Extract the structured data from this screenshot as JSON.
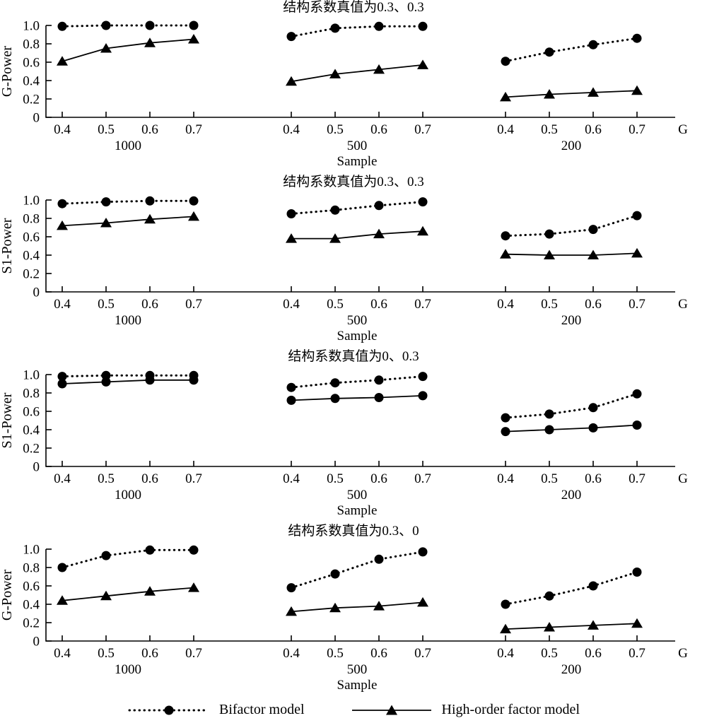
{
  "figure": {
    "background": "#ffffff",
    "ink": "#000000",
    "legend": [
      {
        "label": "Bifactor model",
        "marker": "circle",
        "line": "dotted"
      },
      {
        "label": "High-order factor model",
        "marker": "triangle",
        "line": "solid"
      }
    ]
  },
  "chart_data": [
    {
      "type": "line",
      "title": "结构系数真值为0.3、0.3",
      "ylabel": "G-Power",
      "xlabel": "Sample",
      "x_end_label": "G",
      "ylim": [
        0,
        1.0
      ],
      "yticks": [
        "0",
        "0.2",
        "0.4",
        "0.6",
        "0.8",
        "1.0"
      ],
      "x_tick_labels": [
        "0.4",
        "0.5",
        "0.6",
        "0.7"
      ],
      "group_labels": [
        "1000",
        "500",
        "200"
      ],
      "grid": false,
      "legend_position": "bottom",
      "series": [
        {
          "name": "Bifactor model",
          "line": "dotted",
          "marker": "circle",
          "values": [
            [
              0.99,
              1.0,
              1.0,
              1.0
            ],
            [
              0.88,
              0.97,
              0.99,
              0.99
            ],
            [
              0.61,
              0.71,
              0.79,
              0.86
            ]
          ]
        },
        {
          "name": "High-order factor model",
          "line": "solid",
          "marker": "triangle",
          "values": [
            [
              0.61,
              0.75,
              0.81,
              0.85
            ],
            [
              0.39,
              0.47,
              0.52,
              0.57
            ],
            [
              0.22,
              0.25,
              0.27,
              0.29
            ]
          ]
        }
      ]
    },
    {
      "type": "line",
      "title": "结构系数真值为0.3、0.3",
      "ylabel": "S1-Power",
      "xlabel": "Sample",
      "x_end_label": "G",
      "ylim": [
        0,
        1.0
      ],
      "yticks": [
        "0",
        "0.2",
        "0.4",
        "0.6",
        "0.8",
        "1.0"
      ],
      "x_tick_labels": [
        "0.4",
        "0.5",
        "0.6",
        "0.7"
      ],
      "group_labels": [
        "1000",
        "500",
        "200"
      ],
      "grid": false,
      "legend_position": "bottom",
      "series": [
        {
          "name": "Bifactor model",
          "line": "dotted",
          "marker": "circle",
          "values": [
            [
              0.96,
              0.98,
              0.99,
              0.99
            ],
            [
              0.85,
              0.89,
              0.94,
              0.98
            ],
            [
              0.61,
              0.63,
              0.68,
              0.83
            ]
          ]
        },
        {
          "name": "High-order factor model",
          "line": "solid",
          "marker": "triangle",
          "values": [
            [
              0.72,
              0.75,
              0.79,
              0.82
            ],
            [
              0.58,
              0.58,
              0.63,
              0.66
            ],
            [
              0.41,
              0.4,
              0.4,
              0.42
            ]
          ]
        }
      ]
    },
    {
      "type": "line",
      "title": "结构系数真值为0、0.3",
      "ylabel": "S1-Power",
      "xlabel": "Sample",
      "x_end_label": "G",
      "ylim": [
        0,
        1.0
      ],
      "yticks": [
        "0",
        "0.2",
        "0.4",
        "0.6",
        "0.8",
        "1.0"
      ],
      "x_tick_labels": [
        "0.4",
        "0.5",
        "0.6",
        "0.7"
      ],
      "group_labels": [
        "1000",
        "500",
        "200"
      ],
      "grid": false,
      "legend_position": "bottom",
      "series": [
        {
          "name": "Bifactor model",
          "line": "dotted",
          "marker": "circle",
          "values": [
            [
              0.98,
              0.99,
              0.99,
              0.99
            ],
            [
              0.86,
              0.91,
              0.94,
              0.98
            ],
            [
              0.53,
              0.57,
              0.64,
              0.79
            ]
          ]
        },
        {
          "name": "High-order factor model",
          "line": "solid",
          "marker": "circle",
          "values": [
            [
              0.9,
              0.92,
              0.94,
              0.94
            ],
            [
              0.72,
              0.74,
              0.75,
              0.77
            ],
            [
              0.38,
              0.4,
              0.42,
              0.45
            ]
          ]
        }
      ]
    },
    {
      "type": "line",
      "title": "结构系数真值为0.3、0",
      "ylabel": "G-Power",
      "xlabel": "Sample",
      "x_end_label": "G",
      "ylim": [
        0,
        1.0
      ],
      "yticks": [
        "0",
        "0.2",
        "0.4",
        "0.6",
        "0.8",
        "1.0"
      ],
      "x_tick_labels": [
        "0.4",
        "0.5",
        "0.6",
        "0.7"
      ],
      "group_labels": [
        "1000",
        "500",
        "200"
      ],
      "grid": false,
      "legend_position": "bottom",
      "series": [
        {
          "name": "Bifactor model",
          "line": "dotted",
          "marker": "circle",
          "values": [
            [
              0.8,
              0.93,
              0.99,
              0.99
            ],
            [
              0.58,
              0.73,
              0.89,
              0.97
            ],
            [
              0.4,
              0.49,
              0.6,
              0.75
            ]
          ]
        },
        {
          "name": "High-order factor model",
          "line": "solid",
          "marker": "triangle",
          "values": [
            [
              0.44,
              0.49,
              0.54,
              0.58
            ],
            [
              0.32,
              0.36,
              0.38,
              0.42
            ],
            [
              0.13,
              0.15,
              0.17,
              0.19
            ]
          ]
        }
      ]
    }
  ]
}
